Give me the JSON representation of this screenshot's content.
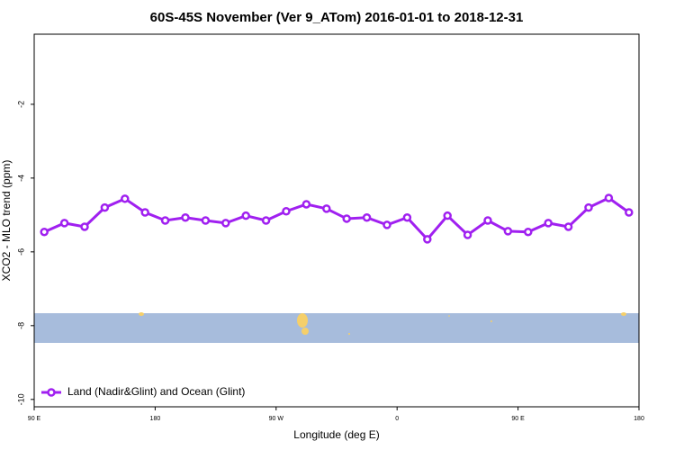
{
  "chart_data": {
    "type": "line",
    "title": "60S-45S November (Ver 9_ATom)   2016-01-01 to 2018-12-31",
    "x_label": "Longitude (deg E)",
    "y_label": "XCO2 - MLO trend (ppm)",
    "x": [
      97.5,
      112.5,
      127.5,
      142.5,
      157.5,
      172.5,
      187.5,
      202.5,
      217.5,
      232.5,
      247.5,
      262.5,
      277.5,
      292.5,
      307.5,
      322.5,
      337.5,
      352.5,
      367.5,
      382.5,
      397.5,
      412.5,
      427.5,
      442.5,
      457.5,
      472.5,
      487.5,
      502.5,
      517.5,
      532.5
    ],
    "series": [
      {
        "name": "Land (Nadir&Glint) and Ocean (Glint)",
        "color": "#a020f0",
        "values": [
          -5.46,
          -5.22,
          -5.32,
          -4.8,
          -4.56,
          -4.93,
          -5.15,
          -5.07,
          -5.15,
          -5.22,
          -5.02,
          -5.15,
          -4.9,
          -4.71,
          -4.83,
          -5.1,
          -5.07,
          -5.27,
          -5.07,
          -5.66,
          -5.02,
          -5.54,
          -5.15,
          -5.44,
          -5.46,
          -5.22,
          -5.32,
          -4.8,
          -4.54,
          -4.93
        ]
      }
    ],
    "xlim": [
      90,
      540
    ],
    "xticks": [
      {
        "value": 90,
        "label": "90 E"
      },
      180,
      {
        "value": 270,
        "label": "90 W"
      },
      {
        "value": 360,
        "label": "0"
      },
      {
        "value": 450,
        "label": "90 E"
      },
      {
        "value": 540,
        "label": "180"
      }
    ],
    "ylim": [
      -10.2,
      -0.1
    ],
    "yticks": [
      -2,
      -4,
      -6,
      -8,
      -10
    ],
    "legend": "bottom-left"
  }
}
